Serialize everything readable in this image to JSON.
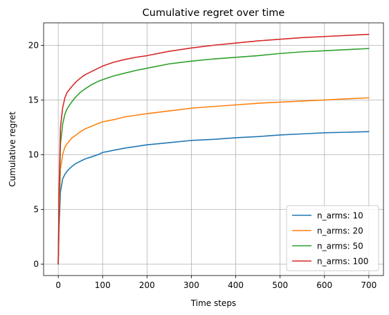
{
  "chart_data": {
    "type": "line",
    "title": "Cumulative regret over time",
    "xlabel": "Time steps",
    "ylabel": "Cumulative regret",
    "xlim": [
      -33,
      733
    ],
    "ylim": [
      -1.05,
      22.05
    ],
    "xticks": [
      0,
      100,
      200,
      300,
      400,
      500,
      600,
      700
    ],
    "yticks": [
      0,
      5,
      10,
      15,
      20
    ],
    "grid": true,
    "legend_position": "lower-right",
    "series": [
      {
        "name": "n_arms: 10",
        "color": "#1f77b4",
        "x": [
          0,
          2,
          5,
          10,
          15,
          20,
          30,
          40,
          50,
          60,
          75,
          90,
          100,
          125,
          150,
          175,
          200,
          250,
          300,
          350,
          400,
          450,
          500,
          550,
          600,
          650,
          700
        ],
        "y": [
          0,
          3.5,
          6.6,
          7.8,
          8.2,
          8.5,
          8.9,
          9.2,
          9.4,
          9.6,
          9.8,
          10.0,
          10.2,
          10.4,
          10.6,
          10.75,
          10.9,
          11.1,
          11.3,
          11.4,
          11.55,
          11.65,
          11.8,
          11.9,
          12.0,
          12.05,
          12.1
        ]
      },
      {
        "name": "n_arms: 20",
        "color": "#ff7f0e",
        "x": [
          0,
          2,
          5,
          10,
          15,
          20,
          30,
          40,
          50,
          60,
          75,
          90,
          100,
          125,
          150,
          175,
          200,
          250,
          300,
          350,
          400,
          450,
          500,
          550,
          600,
          650,
          700
        ],
        "y": [
          0,
          4.5,
          8.7,
          10.0,
          10.7,
          11.0,
          11.5,
          11.8,
          12.1,
          12.35,
          12.6,
          12.85,
          13.0,
          13.2,
          13.45,
          13.6,
          13.75,
          14.0,
          14.25,
          14.4,
          14.55,
          14.7,
          14.8,
          14.9,
          15.0,
          15.1,
          15.2
        ]
      },
      {
        "name": "n_arms: 50",
        "color": "#2ca02c",
        "x": [
          0,
          2,
          5,
          10,
          15,
          20,
          30,
          40,
          50,
          60,
          75,
          90,
          100,
          125,
          150,
          175,
          200,
          250,
          300,
          350,
          400,
          450,
          500,
          550,
          600,
          650,
          700
        ],
        "y": [
          0,
          6.0,
          11.0,
          12.8,
          13.7,
          14.2,
          14.8,
          15.3,
          15.7,
          16.0,
          16.4,
          16.7,
          16.85,
          17.2,
          17.45,
          17.7,
          17.9,
          18.3,
          18.55,
          18.75,
          18.9,
          19.05,
          19.25,
          19.4,
          19.5,
          19.6,
          19.7
        ]
      },
      {
        "name": "n_arms: 100",
        "color": "#d62728",
        "x": [
          0,
          2,
          5,
          10,
          15,
          20,
          30,
          40,
          50,
          60,
          75,
          90,
          100,
          125,
          150,
          175,
          200,
          250,
          300,
          350,
          400,
          450,
          500,
          550,
          600,
          650,
          700
        ],
        "y": [
          0,
          7.0,
          12.5,
          14.3,
          15.2,
          15.7,
          16.2,
          16.65,
          17.0,
          17.3,
          17.6,
          17.9,
          18.1,
          18.45,
          18.7,
          18.9,
          19.05,
          19.45,
          19.75,
          20.0,
          20.2,
          20.4,
          20.55,
          20.7,
          20.8,
          20.9,
          21.0
        ]
      }
    ]
  }
}
